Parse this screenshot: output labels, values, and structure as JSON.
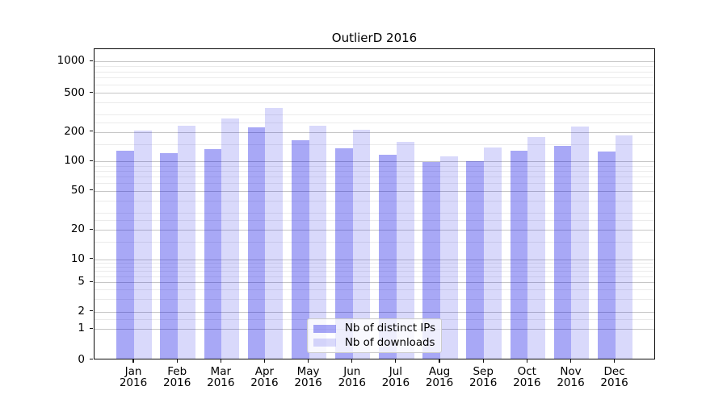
{
  "chart_data": {
    "type": "bar",
    "title": "OutlierD 2016",
    "xlabel": "",
    "ylabel": "",
    "categories": [
      "Jan",
      "Feb",
      "Mar",
      "Apr",
      "May",
      "Jun",
      "Jul",
      "Aug",
      "Sep",
      "Oct",
      "Nov",
      "Dec"
    ],
    "category_year": "2016",
    "series": [
      {
        "name": "Nb of distinct IPs",
        "key": "distinct-ips",
        "color": "rgba(0,0,230,0.34)",
        "values": [
          123,
          118,
          128,
          216,
          158,
          132,
          112,
          95,
          98,
          124,
          140,
          121
        ]
      },
      {
        "name": "Nb of downloads",
        "key": "downloads",
        "color": "rgba(0,0,230,0.15)",
        "values": [
          199,
          224,
          264,
          337,
          225,
          204,
          152,
          108,
          135,
          172,
          220,
          177
        ]
      }
    ],
    "yticks": [
      0,
      1,
      2,
      5,
      10,
      20,
      50,
      100,
      200,
      500,
      1000
    ],
    "y_minor_ticks": [
      1.5,
      3,
      4,
      6,
      7,
      8,
      9,
      15,
      25,
      30,
      40,
      60,
      70,
      80,
      90,
      150,
      250,
      300,
      400,
      600,
      700,
      800,
      900
    ],
    "scale": "symlog-like (linear 0-1, quasi-log above)",
    "scale_anchors": [
      [
        0,
        0
      ],
      [
        1,
        0.0995
      ],
      [
        2,
        0.1554
      ],
      [
        5,
        0.2505
      ],
      [
        10,
        0.3238
      ],
      [
        20,
        0.4189
      ],
      [
        50,
        0.5443
      ],
      [
        100,
        0.6391
      ],
      [
        200,
        0.7342
      ],
      [
        500,
        0.8593
      ],
      [
        1000,
        0.9611
      ]
    ],
    "grid": "both",
    "legend_position": "inside lower-center"
  },
  "colors": {
    "bar_dark": "rgba(0,0,230,0.34)",
    "bar_light": "rgba(0,0,230,0.15)",
    "grid_major": "#c6c6c6",
    "grid_minor": "#ebebeb",
    "spine": "#0a0a0a",
    "legend_border": "#cccccc"
  }
}
